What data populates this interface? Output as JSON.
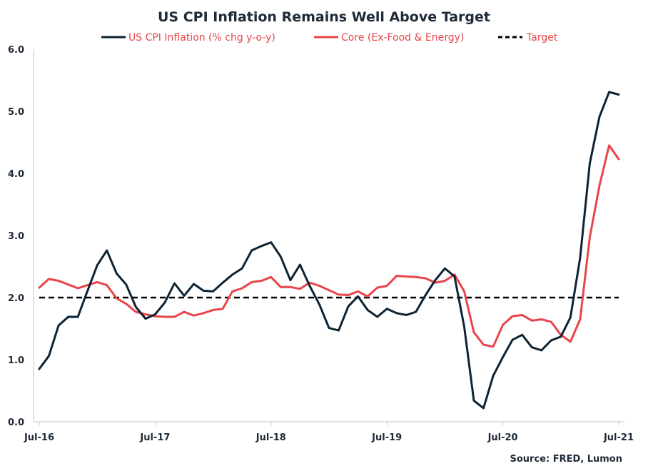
{
  "chart_data": {
    "type": "line",
    "title": "US CPI Inflation Remains Well Above Target",
    "xlabel": "",
    "ylabel": "",
    "source": "Source: FRED, Lumon",
    "ylim": [
      0,
      6
    ],
    "y_ticks": [
      "0.0",
      "1.0",
      "2.0",
      "3.0",
      "4.0",
      "5.0",
      "6.0"
    ],
    "x_tick_labels": [
      {
        "label": "Jul-16",
        "index": 0
      },
      {
        "label": "Jul-17",
        "index": 12
      },
      {
        "label": "Jul-18",
        "index": 24
      },
      {
        "label": "Jul-19",
        "index": 36
      },
      {
        "label": "Jul-20",
        "index": 48
      },
      {
        "label": "Jul-21",
        "index": 60
      }
    ],
    "x": [
      "Jul-16",
      "Aug-16",
      "Sep-16",
      "Oct-16",
      "Nov-16",
      "Dec-16",
      "Jan-17",
      "Feb-17",
      "Mar-17",
      "Apr-17",
      "May-17",
      "Jun-17",
      "Jul-17",
      "Aug-17",
      "Sep-17",
      "Oct-17",
      "Nov-17",
      "Dec-17",
      "Jan-18",
      "Feb-18",
      "Mar-18",
      "Apr-18",
      "May-18",
      "Jun-18",
      "Jul-18",
      "Aug-18",
      "Sep-18",
      "Oct-18",
      "Nov-18",
      "Dec-18",
      "Jan-19",
      "Feb-19",
      "Mar-19",
      "Apr-19",
      "May-19",
      "Jun-19",
      "Jul-19",
      "Aug-19",
      "Sep-19",
      "Oct-19",
      "Nov-19",
      "Dec-19",
      "Jan-20",
      "Feb-20",
      "Mar-20",
      "Apr-20",
      "May-20",
      "Jun-20",
      "Jul-20",
      "Aug-20",
      "Sep-20",
      "Oct-20",
      "Nov-20",
      "Dec-20",
      "Jan-21",
      "Feb-21",
      "Mar-21",
      "Apr-21",
      "May-21",
      "Jun-21",
      "Jul-21"
    ],
    "series": [
      {
        "name": "US CPI Inflation (% chg y-o-y)",
        "color": "#0e2433",
        "style": "solid",
        "values": [
          0.85,
          1.06,
          1.55,
          1.69,
          1.69,
          2.11,
          2.52,
          2.76,
          2.39,
          2.21,
          1.85,
          1.66,
          1.73,
          1.92,
          2.23,
          2.03,
          2.22,
          2.11,
          2.1,
          2.24,
          2.37,
          2.47,
          2.76,
          2.83,
          2.89,
          2.66,
          2.28,
          2.53,
          2.19,
          1.89,
          1.51,
          1.47,
          1.86,
          2.02,
          1.8,
          1.69,
          1.82,
          1.75,
          1.72,
          1.77,
          2.04,
          2.28,
          2.47,
          2.34,
          1.53,
          0.34,
          0.22,
          0.74,
          1.04,
          1.32,
          1.4,
          1.2,
          1.15,
          1.31,
          1.37,
          1.68,
          2.64,
          4.16,
          4.91,
          5.31,
          5.27
        ]
      },
      {
        "name": "Core (Ex-Food & Energy)",
        "color": "#e8454a",
        "style": "solid",
        "values": [
          2.16,
          2.3,
          2.27,
          2.21,
          2.15,
          2.2,
          2.25,
          2.2,
          1.99,
          1.9,
          1.77,
          1.73,
          1.7,
          1.69,
          1.69,
          1.77,
          1.71,
          1.75,
          1.8,
          1.82,
          2.1,
          2.15,
          2.25,
          2.27,
          2.33,
          2.17,
          2.17,
          2.14,
          2.24,
          2.19,
          2.12,
          2.05,
          2.04,
          2.1,
          2.02,
          2.16,
          2.19,
          2.35,
          2.34,
          2.33,
          2.31,
          2.24,
          2.27,
          2.37,
          2.1,
          1.44,
          1.24,
          1.21,
          1.56,
          1.7,
          1.72,
          1.63,
          1.65,
          1.61,
          1.4,
          1.29,
          1.65,
          2.97,
          3.8,
          4.45,
          4.23
        ]
      },
      {
        "name": "Target",
        "color": "#000000",
        "style": "dashed",
        "values": [
          2.0,
          2.0,
          2.0,
          2.0,
          2.0,
          2.0,
          2.0,
          2.0,
          2.0,
          2.0,
          2.0,
          2.0,
          2.0,
          2.0,
          2.0,
          2.0,
          2.0,
          2.0,
          2.0,
          2.0,
          2.0,
          2.0,
          2.0,
          2.0,
          2.0,
          2.0,
          2.0,
          2.0,
          2.0,
          2.0,
          2.0,
          2.0,
          2.0,
          2.0,
          2.0,
          2.0,
          2.0,
          2.0,
          2.0,
          2.0,
          2.0,
          2.0,
          2.0,
          2.0,
          2.0,
          2.0,
          2.0,
          2.0,
          2.0,
          2.0,
          2.0,
          2.0,
          2.0,
          2.0,
          2.0,
          2.0,
          2.0,
          2.0,
          2.0,
          2.0,
          2.0
        ]
      }
    ],
    "grid": false,
    "legend_position": "top"
  }
}
